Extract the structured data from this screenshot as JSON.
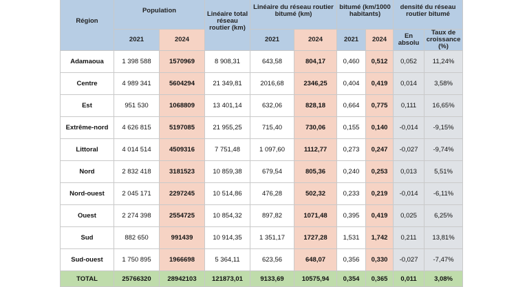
{
  "headers": {
    "region": "Région",
    "population": "Population",
    "lineaire_total": "Linéaire total réseau routier (km)",
    "lineaire_bitume": "Linéaire du réseau routier bitumé (km)",
    "densite_bitume": "bitumé (km/1000 habitants)",
    "evolution_densite": "densité du réseau routier bitumé",
    "year_2021": "2021",
    "year_2024": "2024",
    "en_absolu": "En absolu",
    "taux_croissance": "Taux de croissance (%)"
  },
  "rows": [
    {
      "region": "Adamaoua",
      "pop2021": "1 398 588",
      "pop2024": "1570969",
      "total": "8 908,31",
      "bit2021": "643,58",
      "bit2024": "804,17",
      "d2021": "0,460",
      "d2024": "0,512",
      "abs": "0,052",
      "taux": "11,24%"
    },
    {
      "region": "Centre",
      "pop2021": "4 989 341",
      "pop2024": "5604294",
      "total": "21 349,81",
      "bit2021": "2016,68",
      "bit2024": "2346,25",
      "d2021": "0,404",
      "d2024": "0,419",
      "abs": "0,014",
      "taux": "3,58%"
    },
    {
      "region": "Est",
      "pop2021": "951 530",
      "pop2024": "1068809",
      "total": "13 401,14",
      "bit2021": "632,06",
      "bit2024": "828,18",
      "d2021": "0,664",
      "d2024": "0,775",
      "abs": "0,111",
      "taux": "16,65%"
    },
    {
      "region": "Extrême-nord",
      "pop2021": "4 626 815",
      "pop2024": "5197085",
      "total": "21 955,25",
      "bit2021": "715,40",
      "bit2024": "730,06",
      "d2021": "0,155",
      "d2024": "0,140",
      "abs": "-0,014",
      "taux": "-9,15%"
    },
    {
      "region": "Littoral",
      "pop2021": "4 014 514",
      "pop2024": "4509316",
      "total": "7 751,48",
      "bit2021": "1 097,60",
      "bit2024": "1112,77",
      "d2021": "0,273",
      "d2024": "0,247",
      "abs": "-0,027",
      "taux": "-9,74%"
    },
    {
      "region": "Nord",
      "pop2021": "2 832 418",
      "pop2024": "3181523",
      "total": "10 859,38",
      "bit2021": "679,54",
      "bit2024": "805,36",
      "d2021": "0,240",
      "d2024": "0,253",
      "abs": "0,013",
      "taux": "5,51%"
    },
    {
      "region": "Nord-ouest",
      "pop2021": "2 045 171",
      "pop2024": "2297245",
      "total": "10 514,86",
      "bit2021": "476,28",
      "bit2024": "502,32",
      "d2021": "0,233",
      "d2024": "0,219",
      "abs": "-0,014",
      "taux": "-6,11%"
    },
    {
      "region": "Ouest",
      "pop2021": "2 274 398",
      "pop2024": "2554725",
      "total": "10 854,32",
      "bit2021": "897,82",
      "bit2024": "1071,48",
      "d2021": "0,395",
      "d2024": "0,419",
      "abs": "0,025",
      "taux": "6,25%"
    },
    {
      "region": "Sud",
      "pop2021": "882 650",
      "pop2024": "991439",
      "total": "10 914,35",
      "bit2021": "1 351,17",
      "bit2024": "1727,28",
      "d2021": "1,531",
      "d2024": "1,742",
      "abs": "0,211",
      "taux": "13,81%"
    },
    {
      "region": "Sud-ouest",
      "pop2021": "1 750 895",
      "pop2024": "1966698",
      "total": "5 364,11",
      "bit2021": "623,56",
      "bit2024": "648,07",
      "d2021": "0,356",
      "d2024": "0,330",
      "abs": "-0,027",
      "taux": "-7,47%"
    }
  ],
  "total": {
    "region": "TOTAL",
    "pop2021": "25766320",
    "pop2024": "28942103",
    "total": "121873,01",
    "bit2021": "9133,69",
    "bit2024": "10575,94",
    "d2021": "0,354",
    "d2024": "0,365",
    "abs": "0,011",
    "taux": "3,08%"
  }
}
